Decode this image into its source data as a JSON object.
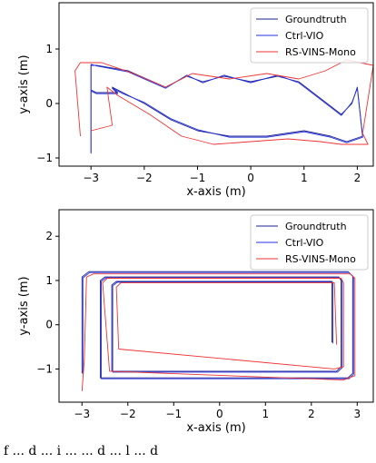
{
  "colors": {
    "groundtruth": "#1f1f8f",
    "ctrl_vio": "#2233dd",
    "rs_vins": "#ee3333"
  },
  "caption": "f ... d ... i ... ... d ... l ... d",
  "chart_data": [
    {
      "type": "line",
      "title": "",
      "xlabel": "x-axis (m)",
      "ylabel": "y-axis (m)",
      "xlim": [
        -3.6,
        2.3
      ],
      "ylim": [
        -1.15,
        1.85
      ],
      "xticks": [
        -3,
        -2,
        -1,
        0,
        1,
        2
      ],
      "yticks": [
        -1,
        0,
        1
      ],
      "grid": false,
      "legend": "top-right",
      "series": [
        {
          "name": "Groundtruth",
          "color": "#1f1f8f",
          "x": [
            -3.0,
            -3.0,
            -2.9,
            -2.3,
            -1.6,
            -1.2,
            -0.9,
            -0.5,
            0.0,
            0.5,
            0.9,
            1.3,
            1.7,
            1.9,
            2.0,
            2.1,
            1.8,
            1.5,
            1.0,
            0.3,
            -0.4,
            -1.0,
            -1.5,
            -2.0,
            -2.4,
            -2.6,
            -2.5,
            -2.9,
            -3.0
          ],
          "y": [
            -0.9,
            0.7,
            0.7,
            0.6,
            0.3,
            0.5,
            0.4,
            0.5,
            0.4,
            0.5,
            0.4,
            0.1,
            -0.2,
            0.0,
            0.3,
            -0.6,
            -0.7,
            -0.6,
            -0.5,
            -0.6,
            -0.6,
            -0.5,
            -0.3,
            0.0,
            0.2,
            0.3,
            0.2,
            0.2,
            0.25
          ]
        },
        {
          "name": "Ctrl-VIO",
          "color": "#2233dd",
          "x": [
            -3.0,
            -3.0,
            -2.9,
            -2.3,
            -1.6,
            -1.2,
            -0.9,
            -0.5,
            0.0,
            0.5,
            0.9,
            1.3,
            1.7,
            1.9,
            2.0,
            2.1,
            1.8,
            1.5,
            1.0,
            0.3,
            -0.4,
            -1.0,
            -1.5,
            -2.0,
            -2.4,
            -2.6,
            -2.5,
            -2.9,
            -3.0
          ],
          "y": [
            -0.92,
            0.72,
            0.69,
            0.58,
            0.28,
            0.52,
            0.38,
            0.52,
            0.38,
            0.52,
            0.38,
            0.08,
            -0.22,
            0.02,
            0.28,
            -0.62,
            -0.72,
            -0.62,
            -0.52,
            -0.62,
            -0.62,
            -0.48,
            -0.28,
            0.02,
            0.18,
            0.28,
            0.18,
            0.18,
            0.23
          ]
        },
        {
          "name": "RS-VINS-Mono",
          "color": "#ee3333",
          "x": [
            -3.2,
            -3.3,
            -3.2,
            -2.8,
            -2.2,
            -1.6,
            -1.1,
            -0.4,
            0.3,
            0.9,
            1.4,
            1.8,
            2.3,
            2.1,
            2.2,
            1.7,
            1.3,
            0.7,
            0.0,
            -0.7,
            -1.3,
            -1.9,
            -2.5,
            -2.7,
            -2.6,
            -3.0
          ],
          "y": [
            -0.6,
            0.6,
            0.75,
            0.75,
            0.55,
            0.3,
            0.55,
            0.45,
            0.55,
            0.45,
            0.6,
            0.8,
            0.7,
            -0.55,
            -0.75,
            -0.75,
            -0.7,
            -0.65,
            -0.7,
            -0.75,
            -0.6,
            -0.2,
            0.15,
            0.3,
            -0.4,
            -0.5
          ]
        }
      ]
    },
    {
      "type": "line",
      "title": "",
      "xlabel": "x-axis (m)",
      "ylabel": "y-axis (m)",
      "xlim": [
        -3.5,
        3.35
      ],
      "ylim": [
        -1.75,
        2.6
      ],
      "xticks": [
        -3,
        -2,
        -1,
        0,
        1,
        2,
        3
      ],
      "yticks": [
        -1,
        0,
        1,
        2
      ],
      "grid": false,
      "legend": "top-right",
      "series": [
        {
          "name": "Groundtruth",
          "color": "#1f1f8f",
          "x": [
            -3.0,
            -3.0,
            -2.85,
            2.8,
            2.9,
            2.9,
            2.8,
            -2.6,
            -2.6,
            -2.5,
            2.6,
            2.65,
            2.65,
            2.55,
            -2.35,
            -2.35,
            -2.25,
            2.45,
            2.45
          ],
          "y": [
            -1.1,
            1.08,
            1.2,
            1.2,
            1.1,
            -1.1,
            -1.2,
            -1.2,
            1.0,
            1.08,
            1.08,
            1.0,
            -0.95,
            -1.05,
            -1.05,
            0.9,
            0.98,
            0.98,
            -0.4
          ]
        },
        {
          "name": "Ctrl-VIO",
          "color": "#2233dd",
          "x": [
            -2.98,
            -2.98,
            -2.83,
            2.82,
            2.92,
            2.92,
            2.82,
            -2.58,
            -2.58,
            -2.48,
            2.62,
            2.67,
            2.67,
            2.57,
            -2.33,
            -2.33,
            -2.23,
            2.47,
            2.47
          ],
          "y": [
            -1.12,
            1.06,
            1.18,
            1.18,
            1.08,
            -1.12,
            -1.22,
            -1.22,
            0.98,
            1.06,
            1.06,
            0.98,
            -0.97,
            -1.07,
            -1.07,
            0.88,
            0.96,
            0.96,
            -0.42
          ]
        },
        {
          "name": "RS-VINS-Mono",
          "color": "#ee3333",
          "x": [
            -3.0,
            -2.95,
            -2.9,
            -2.75,
            2.85,
            2.95,
            2.95,
            2.7,
            -2.4,
            -2.55,
            -2.45,
            2.65,
            2.7,
            2.7,
            2.5,
            -2.2,
            -2.25,
            -2.15,
            2.5,
            2.55
          ],
          "y": [
            -1.5,
            -0.8,
            1.08,
            1.15,
            1.15,
            1.05,
            -1.15,
            -1.25,
            -1.05,
            0.95,
            1.05,
            1.05,
            0.95,
            -0.95,
            -1.0,
            -0.55,
            0.85,
            0.95,
            0.95,
            -0.45
          ]
        }
      ]
    }
  ]
}
